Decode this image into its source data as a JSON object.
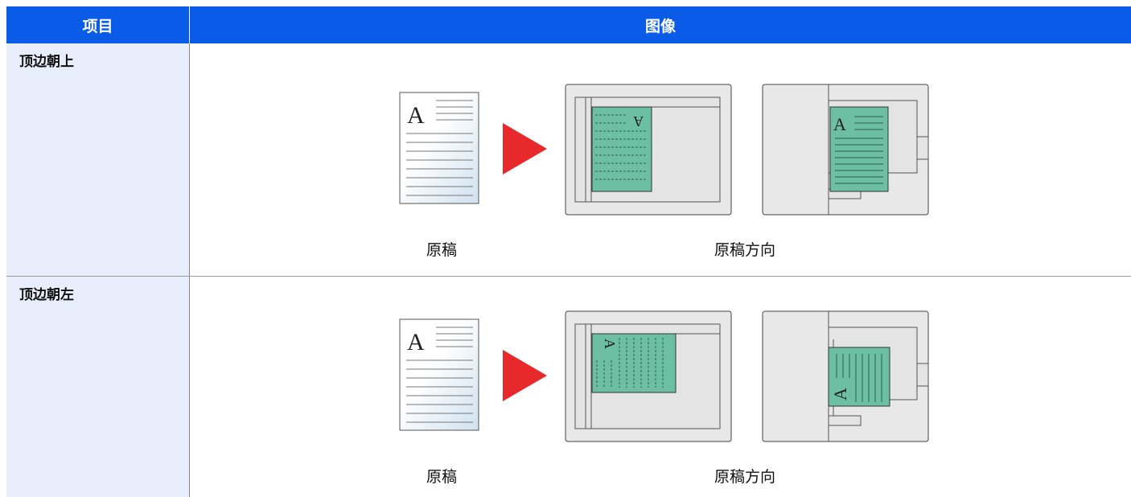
{
  "table": {
    "header": [
      "项目",
      "图像"
    ],
    "rows": [
      {
        "label": "顶边朝上",
        "captions": [
          "原稿",
          "原稿方向"
        ],
        "letter": "A"
      },
      {
        "label": "顶边朝左",
        "captions": [
          "原稿",
          "原稿方向"
        ],
        "letter": "A"
      }
    ]
  }
}
